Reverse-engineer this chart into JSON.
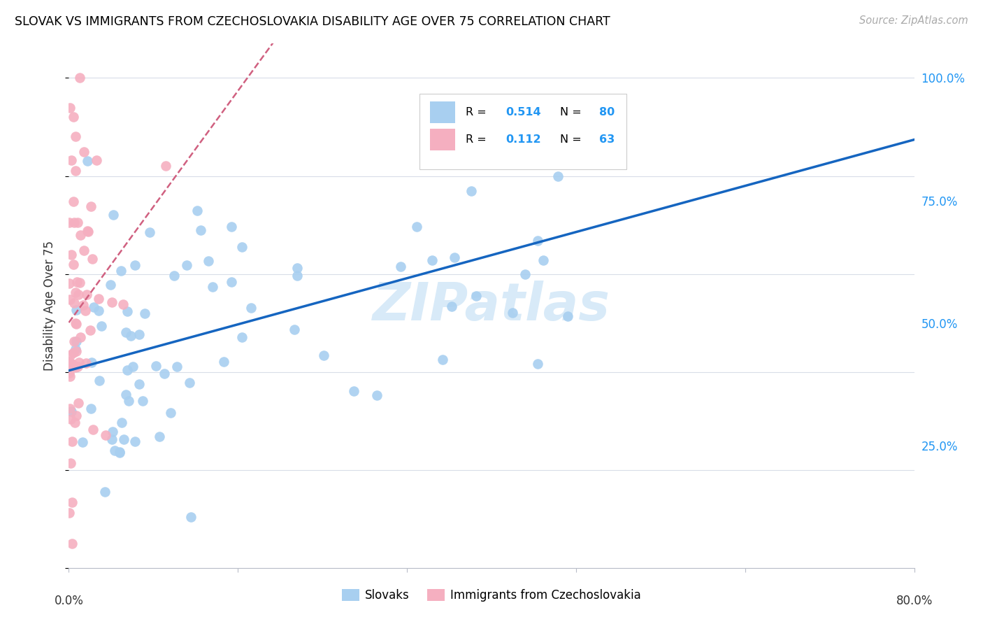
{
  "title": "SLOVAK VS IMMIGRANTS FROM CZECHOSLOVAKIA DISABILITY AGE OVER 75 CORRELATION CHART",
  "source": "Source: ZipAtlas.com",
  "ylabel": "Disability Age Over 75",
  "legend_blue_R": "0.514",
  "legend_blue_N": "80",
  "legend_pink_R": "0.112",
  "legend_pink_N": "63",
  "legend_label_blue": "Slovaks",
  "legend_label_pink": "Immigrants from Czechoslovakia",
  "blue_fill": "#a8cff0",
  "pink_fill": "#f5afc0",
  "blue_line": "#1565c0",
  "pink_line": "#d06080",
  "accent_blue": "#2196F3",
  "watermark_color": "#d8eaf8",
  "grid_color": "#d8dde8",
  "xlim": [
    0,
    80
  ],
  "ylim": [
    0,
    107
  ],
  "yticks": [
    25,
    50,
    75,
    100
  ],
  "ytick_labels": [
    "25.0%",
    "50.0%",
    "75.0%",
    "100.0%"
  ]
}
